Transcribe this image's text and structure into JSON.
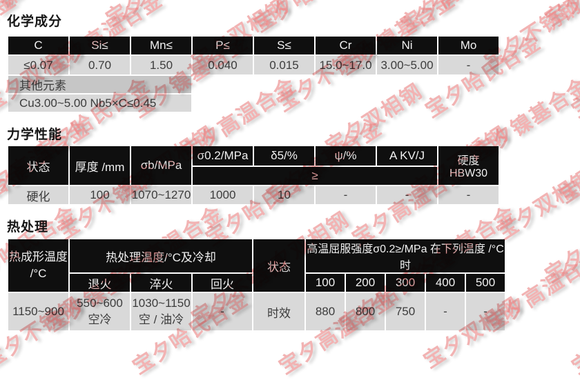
{
  "watermark": {
    "color": "#e87d7d",
    "phrases": [
      "宝夕镍基合金",
      "宝夕不锈钢",
      "宝夕哈氏合金",
      "宝夕高温合金",
      "宝夕双相钢"
    ]
  },
  "chem": {
    "title": "化学成分",
    "headers": [
      "C",
      "Si≤",
      "Mn≤",
      "P≤",
      "S≤",
      "Cr",
      "Ni",
      "Mo"
    ],
    "values": [
      "≤0.07",
      "0.70",
      "1.50",
      "0.040",
      "0.015",
      "15.0~17.0",
      "3.00~5.00",
      "-"
    ],
    "other_label": "其他元素",
    "other_value": "Cu3.00~5.00 Nb5×C≤0.45"
  },
  "mech": {
    "title": "力学性能",
    "h_state": "状态",
    "h_thickness": "厚度 /mm",
    "h_sigma_b": "σb/MPa",
    "h_sigma_02": "σ0.2/MPa",
    "h_delta5": "δ5/%",
    "h_psi": "ψ/%",
    "h_akv": "A KV/J",
    "h_hardness": "硬度 HBW30",
    "h_gte": "≥",
    "row": [
      "硬化",
      "100",
      "1070~1270",
      "1000",
      "10",
      "-",
      "-",
      "-"
    ]
  },
  "heat": {
    "title": "热处理",
    "h_forming_1": "热成形温度",
    "h_forming_2": "/°C",
    "h_ht_span": "热处理温度/°C及冷却",
    "h_anneal": "退火",
    "h_quench": "淬火",
    "h_temper": "回火",
    "h_state": "状态",
    "h_yield_span": "高温屈服强度σ0.2≥/MPa 在下列温度 /°C时",
    "h_temps": [
      "100",
      "200",
      "300",
      "400",
      "500"
    ],
    "r_forming": "1150~900",
    "r_anneal_1": "550~600",
    "r_anneal_2": "空冷",
    "r_quench_1": "1030~1150",
    "r_quench_2": "空 / 油冷",
    "r_temper": "-",
    "r_state": "时效",
    "r_yields": [
      "880",
      "800",
      "750",
      "-",
      "-"
    ]
  }
}
